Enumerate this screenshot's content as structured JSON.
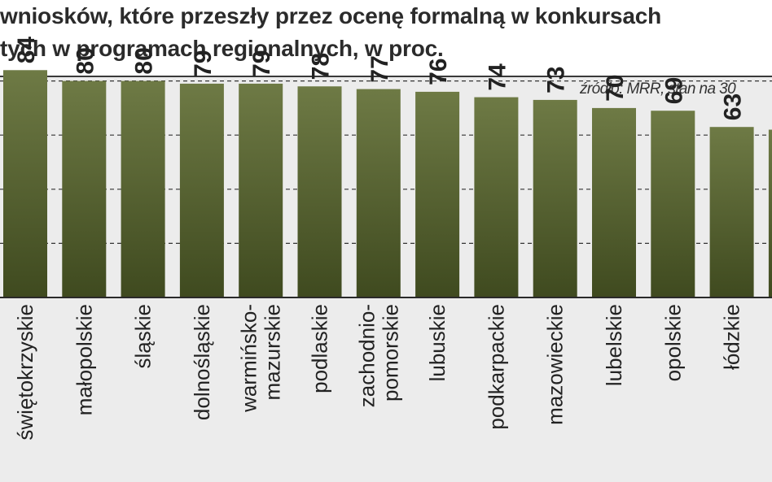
{
  "header": {
    "title_line_1": "wniosków, które przeszły przez ocenę formalną w konkursach",
    "title_line_2": "tych w programach regionalnych, w proc.",
    "source_note": "źródło: MRR, stan na 30"
  },
  "colors": {
    "bar_light": "#6e7a45",
    "bar_dark": "#3f4a1f",
    "background": "#ececec",
    "gridline": "#333333",
    "text": "#222222"
  },
  "chart_data": {
    "type": "bar",
    "title": "",
    "xlabel": "",
    "ylabel": "",
    "ylim": [
      0,
      100
    ],
    "grid": true,
    "categories": [
      [
        "świętokrzyskie"
      ],
      [
        "małopolskie"
      ],
      [
        "śląskie"
      ],
      [
        "dolnośląskie"
      ],
      [
        "warmińsko-",
        "mazurskie"
      ],
      [
        "podlaskie"
      ],
      [
        "zachodnio-",
        "pomorskie"
      ],
      [
        "lubuskie"
      ],
      [
        "podkarpackie"
      ],
      [
        "mazowieckie"
      ],
      [
        "lubelskie"
      ],
      [
        "opolskie"
      ],
      [
        "łódzkie"
      ],
      [
        ""
      ]
    ],
    "values": [
      84,
      80,
      80,
      79,
      79,
      78,
      77,
      76,
      74,
      73,
      70,
      69,
      63,
      62
    ],
    "value_labels": [
      "84",
      "80",
      "80",
      "79",
      "79",
      "78",
      "77",
      "76",
      "74",
      "73",
      "70",
      "69",
      "63",
      ""
    ]
  }
}
